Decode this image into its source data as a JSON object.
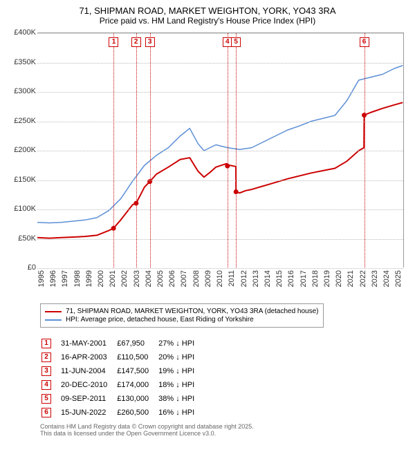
{
  "title": {
    "line1": "71, SHIPMAN ROAD, MARKET WEIGHTON, YORK, YO43 3RA",
    "line2": "Price paid vs. HM Land Registry's House Price Index (HPI)"
  },
  "chart": {
    "type": "line",
    "background_color": "#ffffff",
    "grid_color": "#bbbbbb",
    "x_years": [
      1995,
      1996,
      1997,
      1998,
      1999,
      2000,
      2001,
      2002,
      2003,
      2004,
      2005,
      2006,
      2007,
      2008,
      2009,
      2010,
      2011,
      2012,
      2013,
      2014,
      2015,
      2016,
      2017,
      2018,
      2019,
      2020,
      2021,
      2022,
      2023,
      2024,
      2025
    ],
    "xlim": [
      1995,
      2025.8
    ],
    "ylim": [
      0,
      400000
    ],
    "ytick_step": 50000,
    "yticks": [
      "£0",
      "£50K",
      "£100K",
      "£150K",
      "£200K",
      "£250K",
      "£300K",
      "£350K",
      "£400K"
    ],
    "series": [
      {
        "name": "hpi",
        "color": "#5b8fd6",
        "width": 1.5,
        "points": [
          [
            1995,
            78000
          ],
          [
            1996,
            77000
          ],
          [
            1997,
            78000
          ],
          [
            1998,
            80000
          ],
          [
            1999,
            82000
          ],
          [
            2000,
            86000
          ],
          [
            2001,
            98000
          ],
          [
            2002,
            118000
          ],
          [
            2003,
            148000
          ],
          [
            2004,
            175000
          ],
          [
            2005,
            192000
          ],
          [
            2006,
            205000
          ],
          [
            2007,
            225000
          ],
          [
            2007.8,
            238000
          ],
          [
            2008.5,
            212000
          ],
          [
            2009,
            200000
          ],
          [
            2010,
            210000
          ],
          [
            2011,
            205000
          ],
          [
            2012,
            202000
          ],
          [
            2013,
            205000
          ],
          [
            2014,
            215000
          ],
          [
            2015,
            225000
          ],
          [
            2016,
            235000
          ],
          [
            2017,
            242000
          ],
          [
            2018,
            250000
          ],
          [
            2019,
            255000
          ],
          [
            2020,
            260000
          ],
          [
            2021,
            285000
          ],
          [
            2022,
            320000
          ],
          [
            2023,
            325000
          ],
          [
            2024,
            330000
          ],
          [
            2025,
            340000
          ],
          [
            2025.7,
            345000
          ]
        ]
      },
      {
        "name": "price_paid",
        "color": "#cc0000",
        "width": 2,
        "points": [
          [
            1995,
            52000
          ],
          [
            1996,
            51000
          ],
          [
            1997,
            52000
          ],
          [
            1998,
            53000
          ],
          [
            1999,
            54000
          ],
          [
            2000,
            56000
          ],
          [
            2001,
            64000
          ],
          [
            2001.4,
            67950
          ],
          [
            2002,
            82000
          ],
          [
            2003,
            108000
          ],
          [
            2003.3,
            110500
          ],
          [
            2004,
            138000
          ],
          [
            2004.45,
            147500
          ],
          [
            2005,
            160000
          ],
          [
            2006,
            172000
          ],
          [
            2007,
            185000
          ],
          [
            2007.8,
            188000
          ],
          [
            2008.5,
            165000
          ],
          [
            2009,
            155000
          ],
          [
            2009.5,
            163000
          ],
          [
            2010,
            172000
          ],
          [
            2010.9,
            178000
          ],
          [
            2010.97,
            174000
          ],
          [
            2011.2,
            175000
          ],
          [
            2011.68,
            173000
          ],
          [
            2011.69,
            130000
          ],
          [
            2012,
            128000
          ],
          [
            2012.5,
            132000
          ],
          [
            2013,
            134000
          ],
          [
            2014,
            140000
          ],
          [
            2015,
            146000
          ],
          [
            2016,
            152000
          ],
          [
            2017,
            157000
          ],
          [
            2018,
            162000
          ],
          [
            2019,
            166000
          ],
          [
            2020,
            170000
          ],
          [
            2021,
            182000
          ],
          [
            2022,
            200000
          ],
          [
            2022.44,
            205000
          ],
          [
            2022.46,
            260500
          ],
          [
            2023,
            265000
          ],
          [
            2024,
            272000
          ],
          [
            2025,
            278000
          ],
          [
            2025.7,
            282000
          ]
        ]
      }
    ],
    "markers": [
      {
        "n": 1,
        "x": 2001.42,
        "color": "#cc0000"
      },
      {
        "n": 2,
        "x": 2003.29,
        "color": "#cc0000"
      },
      {
        "n": 3,
        "x": 2004.45,
        "color": "#cc0000"
      },
      {
        "n": 4,
        "x": 2010.97,
        "color": "#cc0000"
      },
      {
        "n": 5,
        "x": 2011.69,
        "color": "#cc0000"
      },
      {
        "n": 6,
        "x": 2022.46,
        "color": "#cc0000"
      }
    ]
  },
  "legend": {
    "row1": {
      "color": "#cc0000",
      "label": "71, SHIPMAN ROAD, MARKET WEIGHTON, YORK, YO43 3RA (detached house)"
    },
    "row2": {
      "color": "#5b8fd6",
      "label": "HPI: Average price, detached house, East Riding of Yorkshire"
    }
  },
  "sales": [
    {
      "n": "1",
      "date": "31-MAY-2001",
      "price": "£67,950",
      "delta": "27% ↓ HPI"
    },
    {
      "n": "2",
      "date": "16-APR-2003",
      "price": "£110,500",
      "delta": "20% ↓ HPI"
    },
    {
      "n": "3",
      "date": "11-JUN-2004",
      "price": "£147,500",
      "delta": "19% ↓ HPI"
    },
    {
      "n": "4",
      "date": "20-DEC-2010",
      "price": "£174,000",
      "delta": "18% ↓ HPI"
    },
    {
      "n": "5",
      "date": "09-SEP-2011",
      "price": "£130,000",
      "delta": "38% ↓ HPI"
    },
    {
      "n": "6",
      "date": "15-JUN-2022",
      "price": "£260,500",
      "delta": "16% ↓ HPI"
    }
  ],
  "footer": {
    "line1": "Contains HM Land Registry data © Crown copyright and database right 2025.",
    "line2": "This data is licensed under the Open Government Licence v3.0."
  }
}
